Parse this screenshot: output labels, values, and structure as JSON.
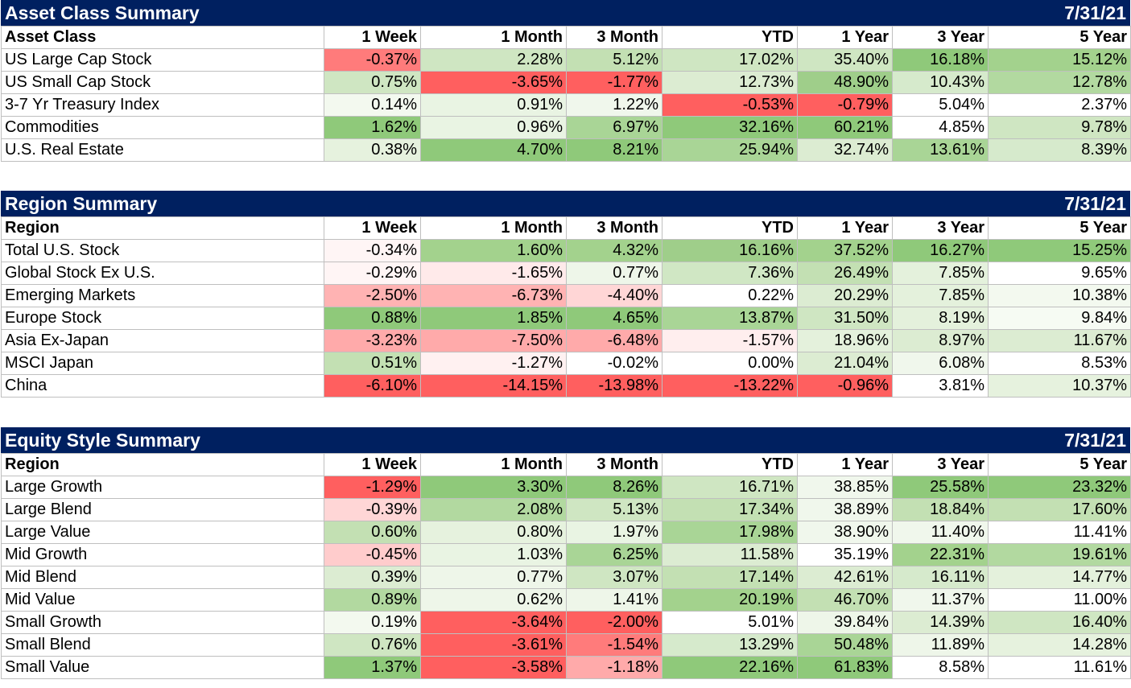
{
  "columns": [
    "1 Week",
    "1 Month",
    "3 Month",
    "YTD",
    "1 Year",
    "3 Year",
    "5 Year"
  ],
  "tables": [
    {
      "title": "Asset Class Summary",
      "date": "7/31/21",
      "label_header": "Asset Class",
      "rows": [
        {
          "label": "US Large Cap Stock",
          "values": [
            "-0.37%",
            "2.28%",
            "5.12%",
            "17.02%",
            "35.40%",
            "16.18%",
            "15.12%"
          ],
          "colors": [
            "#ff7b7b",
            "#cfe6c2",
            "#c3e0b3",
            "#cfe6c2",
            "#cfe6c2",
            "#8fc97a",
            "#a3d28d"
          ]
        },
        {
          "label": "US Small Cap Stock",
          "values": [
            "0.75%",
            "-3.65%",
            "-1.77%",
            "12.73%",
            "48.90%",
            "10.43%",
            "12.78%"
          ],
          "colors": [
            "#cfe6c2",
            "#ff5f5f",
            "#ff5f5f",
            "#dcecd2",
            "#9fce8a",
            "#d6eacc",
            "#b2d9a0"
          ]
        },
        {
          "label": "3-7 Yr Treasury Index",
          "values": [
            "0.14%",
            "0.91%",
            "1.22%",
            "-0.53%",
            "-0.79%",
            "5.04%",
            "2.37%"
          ],
          "colors": [
            "#f3f9ef",
            "#e9f4e3",
            "#f0f7ec",
            "#ff5f5f",
            "#ff5f5f",
            "#ffffff",
            "#ffffff"
          ]
        },
        {
          "label": "Commodities",
          "values": [
            "1.62%",
            "0.96%",
            "6.97%",
            "32.16%",
            "60.21%",
            "4.85%",
            "9.78%"
          ],
          "colors": [
            "#8fc97a",
            "#e9f4e3",
            "#a9d596",
            "#8fc97a",
            "#8fc97a",
            "#ffffff",
            "#cfe6c2"
          ]
        },
        {
          "label": "U.S. Real Estate",
          "values": [
            "0.38%",
            "4.70%",
            "8.21%",
            "25.94%",
            "32.74%",
            "13.61%",
            "8.39%"
          ],
          "colors": [
            "#e6f2de",
            "#8fc97a",
            "#8fc97a",
            "#a9d596",
            "#dcecd2",
            "#a9d596",
            "#d6eacc"
          ]
        }
      ]
    },
    {
      "title": "Region Summary",
      "date": "7/31/21",
      "label_header": "Region",
      "rows": [
        {
          "label": "Total U.S. Stock",
          "values": [
            "-0.34%",
            "1.60%",
            "4.32%",
            "16.16%",
            "37.52%",
            "16.27%",
            "15.25%"
          ],
          "colors": [
            "#fff5f5",
            "#a3d28d",
            "#a3d28d",
            "#9fce8a",
            "#a3d28d",
            "#8fc97a",
            "#8fc97a"
          ]
        },
        {
          "label": "Global Stock Ex U.S.",
          "values": [
            "-0.29%",
            "-1.65%",
            "0.77%",
            "7.36%",
            "26.49%",
            "7.85%",
            "9.65%"
          ],
          "colors": [
            "#fff5f5",
            "#ffeaea",
            "#eef6e9",
            "#d0e7c4",
            "#c3e0b3",
            "#e4f1dc",
            "#ffffff"
          ]
        },
        {
          "label": "Emerging Markets",
          "values": [
            "-2.50%",
            "-6.73%",
            "-4.40%",
            "0.22%",
            "20.29%",
            "7.85%",
            "10.38%"
          ],
          "colors": [
            "#ffb3b3",
            "#ffb3b3",
            "#ffd6d6",
            "#ffffff",
            "#dcecd2",
            "#e4f1dc",
            "#f3f9ef"
          ]
        },
        {
          "label": "Europe Stock",
          "values": [
            "0.88%",
            "1.85%",
            "4.65%",
            "13.87%",
            "31.50%",
            "8.19%",
            "9.84%"
          ],
          "colors": [
            "#8fc97a",
            "#8fc97a",
            "#8fc97a",
            "#a9d596",
            "#cfe6c2",
            "#e4f1dc",
            "#f6fbf3"
          ]
        },
        {
          "label": "Asia Ex-Japan",
          "values": [
            "-3.23%",
            "-7.50%",
            "-6.48%",
            "-1.57%",
            "18.96%",
            "8.97%",
            "11.67%"
          ],
          "colors": [
            "#ffaaaa",
            "#ffaaaa",
            "#ffaaaa",
            "#ffeeee",
            "#e4f1dc",
            "#dcecd2",
            "#dcecd2"
          ]
        },
        {
          "label": "MSCI Japan",
          "values": [
            "0.51%",
            "-1.27%",
            "-0.02%",
            "0.00%",
            "21.04%",
            "6.08%",
            "8.53%"
          ],
          "colors": [
            "#c3e0b3",
            "#fff1f1",
            "#ffffff",
            "#ffffff",
            "#dcecd2",
            "#f0f7ec",
            "#ffffff"
          ]
        },
        {
          "label": "China",
          "values": [
            "-6.10%",
            "-14.15%",
            "-13.98%",
            "-13.22%",
            "-0.96%",
            "3.81%",
            "10.37%"
          ],
          "colors": [
            "#ff5f5f",
            "#ff5f5f",
            "#ff5f5f",
            "#ff5f5f",
            "#ff5f5f",
            "#ffffff",
            "#e6f2de"
          ]
        }
      ]
    },
    {
      "title": "Equity Style Summary",
      "date": "7/31/21",
      "label_header": "Region",
      "rows": [
        {
          "label": "Large Growth",
          "values": [
            "-1.29%",
            "3.30%",
            "8.26%",
            "16.71%",
            "38.85%",
            "25.58%",
            "23.32%"
          ],
          "colors": [
            "#ff5f5f",
            "#8fc97a",
            "#8fc97a",
            "#cfe6c2",
            "#f0f7ec",
            "#8fc97a",
            "#8fc97a"
          ]
        },
        {
          "label": "Large Blend",
          "values": [
            "-0.39%",
            "2.08%",
            "5.13%",
            "17.34%",
            "38.89%",
            "18.84%",
            "17.60%"
          ],
          "colors": [
            "#ffd6d6",
            "#b2d9a0",
            "#cfe6c2",
            "#c3e0b3",
            "#f0f7ec",
            "#c3e0b3",
            "#c3e0b3"
          ]
        },
        {
          "label": "Large Value",
          "values": [
            "0.60%",
            "0.80%",
            "1.97%",
            "17.98%",
            "38.90%",
            "11.40%",
            "11.41%"
          ],
          "colors": [
            "#c3e0b3",
            "#e6f2de",
            "#e9f4e3",
            "#a9d596",
            "#f0f7ec",
            "#f0f7ec",
            "#ffffff"
          ]
        },
        {
          "label": "Mid Growth",
          "values": [
            "-0.45%",
            "1.03%",
            "6.25%",
            "11.58%",
            "35.19%",
            "22.31%",
            "19.61%"
          ],
          "colors": [
            "#ffcccc",
            "#e9f4e3",
            "#a9d596",
            "#dcecd2",
            "#ffffff",
            "#a3d28d",
            "#b2d9a0"
          ]
        },
        {
          "label": "Mid Blend",
          "values": [
            "0.39%",
            "0.77%",
            "3.07%",
            "17.14%",
            "42.61%",
            "16.11%",
            "14.77%"
          ],
          "colors": [
            "#dcecd2",
            "#eef6e9",
            "#cfe6c2",
            "#c3e0b3",
            "#dcecd2",
            "#d6eacc",
            "#e4f1dc"
          ]
        },
        {
          "label": "Mid Value",
          "values": [
            "0.89%",
            "0.62%",
            "1.41%",
            "20.19%",
            "46.70%",
            "11.37%",
            "11.00%"
          ],
          "colors": [
            "#b2d9a0",
            "#eef6e9",
            "#eef6e9",
            "#a3d28d",
            "#c3e0b3",
            "#f0f7ec",
            "#ffffff"
          ]
        },
        {
          "label": "Small Growth",
          "values": [
            "0.19%",
            "-3.64%",
            "-2.00%",
            "5.01%",
            "39.84%",
            "14.39%",
            "16.40%"
          ],
          "colors": [
            "#f3f9ef",
            "#ff5f5f",
            "#ff5f5f",
            "#ffffff",
            "#eef6e9",
            "#dcecd2",
            "#cfe6c2"
          ]
        },
        {
          "label": "Small Blend",
          "values": [
            "0.76%",
            "-3.61%",
            "-1.54%",
            "13.29%",
            "50.48%",
            "11.89%",
            "14.28%"
          ],
          "colors": [
            "#cfe6c2",
            "#ff5f5f",
            "#ff7b7b",
            "#d6eacc",
            "#a9d596",
            "#eef6e9",
            "#e6f2de"
          ]
        },
        {
          "label": "Small Value",
          "values": [
            "1.37%",
            "-3.58%",
            "-1.18%",
            "22.16%",
            "61.83%",
            "8.58%",
            "11.61%"
          ],
          "colors": [
            "#8fc97a",
            "#ff5f5f",
            "#ffaaaa",
            "#8fc97a",
            "#8fc97a",
            "#ffffff",
            "#ffffff"
          ]
        }
      ]
    }
  ]
}
